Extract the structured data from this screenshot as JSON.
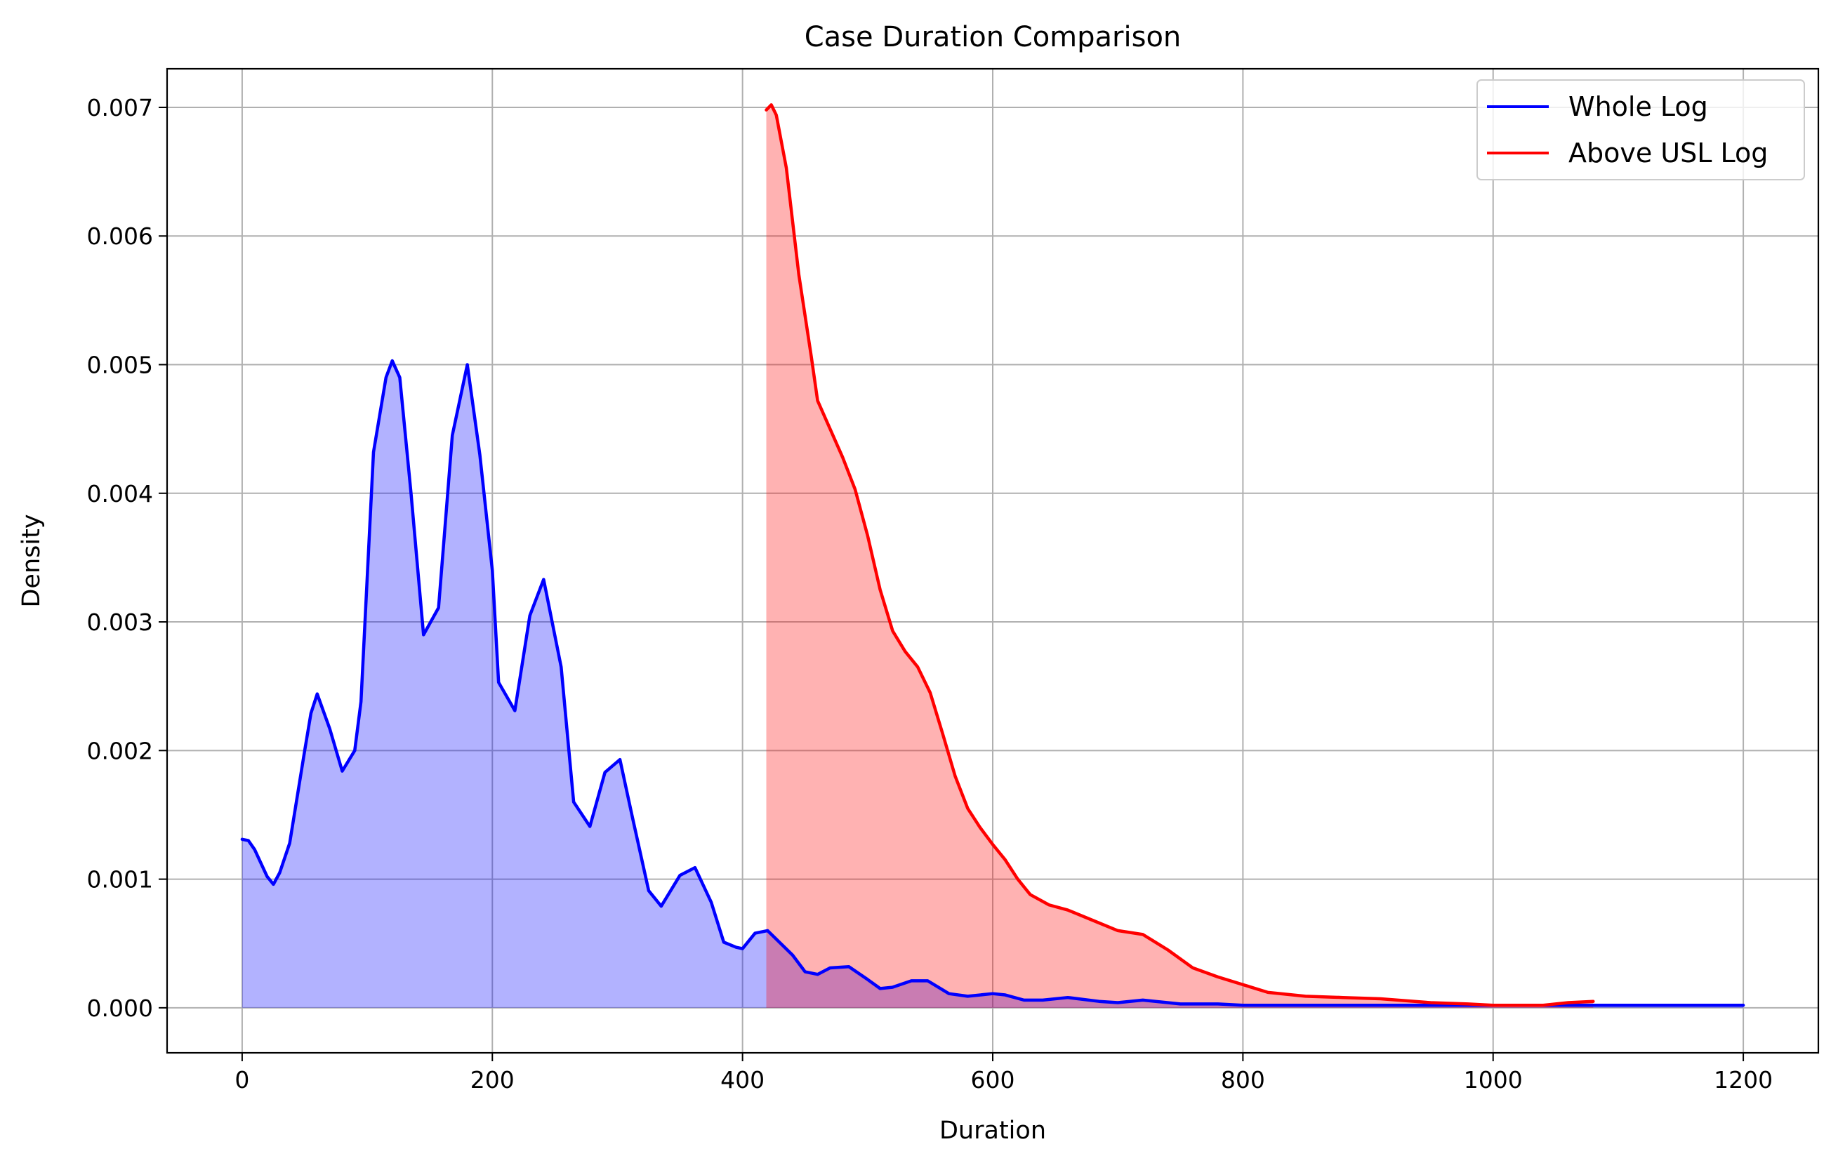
{
  "chart_data": {
    "type": "area",
    "title": "Case Duration Comparison",
    "xlabel": "Duration",
    "ylabel": "Density",
    "xlim": [
      -60,
      1260
    ],
    "ylim": [
      -0.00035,
      0.0073
    ],
    "x_ticks": [
      0,
      200,
      400,
      600,
      800,
      1000,
      1200
    ],
    "x_tick_labels": [
      "0",
      "200",
      "400",
      "600",
      "800",
      "1000",
      "1200"
    ],
    "y_ticks": [
      0,
      0.001,
      0.002,
      0.003,
      0.004,
      0.005,
      0.006,
      0.007
    ],
    "y_tick_labels": [
      "0.000",
      "0.001",
      "0.002",
      "0.003",
      "0.004",
      "0.005",
      "0.006",
      "0.007"
    ],
    "grid": true,
    "legend_position": "top-right",
    "series": [
      {
        "name": "Whole Log",
        "color": "#0000ff",
        "fill_color": "#0000ff",
        "fill_opacity": 0.3,
        "points": [
          [
            0,
            0.00131
          ],
          [
            5,
            0.0013
          ],
          [
            10,
            0.00123
          ],
          [
            20,
            0.00102
          ],
          [
            25,
            0.00096
          ],
          [
            30,
            0.00105
          ],
          [
            38,
            0.00128
          ],
          [
            50,
            0.002
          ],
          [
            55,
            0.00229
          ],
          [
            60,
            0.00244
          ],
          [
            70,
            0.00217
          ],
          [
            80,
            0.00184
          ],
          [
            90,
            0.002
          ],
          [
            95,
            0.00238
          ],
          [
            105,
            0.00432
          ],
          [
            115,
            0.0049
          ],
          [
            120,
            0.00503
          ],
          [
            126,
            0.0049
          ],
          [
            135,
            0.004
          ],
          [
            145,
            0.0029
          ],
          [
            157,
            0.00311
          ],
          [
            168,
            0.00445
          ],
          [
            180,
            0.005
          ],
          [
            190,
            0.0043
          ],
          [
            200,
            0.0034
          ],
          [
            205,
            0.00253
          ],
          [
            218,
            0.00231
          ],
          [
            230,
            0.00305
          ],
          [
            241,
            0.00333
          ],
          [
            255,
            0.00265
          ],
          [
            265,
            0.0016
          ],
          [
            278,
            0.00141
          ],
          [
            290,
            0.00183
          ],
          [
            302,
            0.00193
          ],
          [
            312,
            0.00148
          ],
          [
            325,
            0.00091
          ],
          [
            335,
            0.00079
          ],
          [
            350,
            0.00103
          ],
          [
            362,
            0.00109
          ],
          [
            375,
            0.00082
          ],
          [
            385,
            0.00051
          ],
          [
            395,
            0.00047
          ],
          [
            400,
            0.00046
          ],
          [
            410,
            0.00058
          ],
          [
            420,
            0.0006
          ],
          [
            440,
            0.00041
          ],
          [
            450,
            0.00028
          ],
          [
            460,
            0.00026
          ],
          [
            470,
            0.00031
          ],
          [
            485,
            0.00032
          ],
          [
            500,
            0.00022
          ],
          [
            510,
            0.00015
          ],
          [
            520,
            0.00016
          ],
          [
            535,
            0.00021
          ],
          [
            548,
            0.00021
          ],
          [
            565,
            0.00011
          ],
          [
            580,
            9e-05
          ],
          [
            600,
            0.00011
          ],
          [
            610,
            0.0001
          ],
          [
            625,
            6e-05
          ],
          [
            640,
            6e-05
          ],
          [
            660,
            8e-05
          ],
          [
            685,
            5e-05
          ],
          [
            700,
            4e-05
          ],
          [
            720,
            6e-05
          ],
          [
            750,
            3e-05
          ],
          [
            780,
            3e-05
          ],
          [
            800,
            2e-05
          ],
          [
            850,
            2e-05
          ],
          [
            900,
            2e-05
          ],
          [
            1000,
            2e-05
          ],
          [
            1100,
            2e-05
          ],
          [
            1200,
            2e-05
          ]
        ]
      },
      {
        "name": "Above USL Log",
        "color": "#ff0000",
        "fill_color": "#ff0000",
        "fill_opacity": 0.3,
        "points": [
          [
            419,
            0.00698
          ],
          [
            423,
            0.00702
          ],
          [
            427,
            0.00694
          ],
          [
            435,
            0.00653
          ],
          [
            445,
            0.0057
          ],
          [
            455,
            0.00506
          ],
          [
            460,
            0.00472
          ],
          [
            470,
            0.0045
          ],
          [
            480,
            0.00428
          ],
          [
            490,
            0.00403
          ],
          [
            500,
            0.00367
          ],
          [
            510,
            0.00325
          ],
          [
            520,
            0.00293
          ],
          [
            530,
            0.00277
          ],
          [
            540,
            0.00265
          ],
          [
            550,
            0.00245
          ],
          [
            560,
            0.00213
          ],
          [
            570,
            0.0018
          ],
          [
            580,
            0.00155
          ],
          [
            590,
            0.0014
          ],
          [
            600,
            0.00127
          ],
          [
            610,
            0.00115
          ],
          [
            620,
            0.001
          ],
          [
            630,
            0.00088
          ],
          [
            645,
            0.0008
          ],
          [
            660,
            0.00076
          ],
          [
            680,
            0.00068
          ],
          [
            700,
            0.0006
          ],
          [
            720,
            0.00057
          ],
          [
            740,
            0.00045
          ],
          [
            760,
            0.00031
          ],
          [
            780,
            0.00024
          ],
          [
            800,
            0.00018
          ],
          [
            820,
            0.00012
          ],
          [
            850,
            9e-05
          ],
          [
            880,
            8e-05
          ],
          [
            910,
            7e-05
          ],
          [
            950,
            4e-05
          ],
          [
            980,
            3e-05
          ],
          [
            1000,
            2e-05
          ],
          [
            1020,
            2e-05
          ],
          [
            1040,
            2e-05
          ],
          [
            1060,
            4e-05
          ],
          [
            1080,
            5e-05
          ]
        ]
      }
    ]
  }
}
